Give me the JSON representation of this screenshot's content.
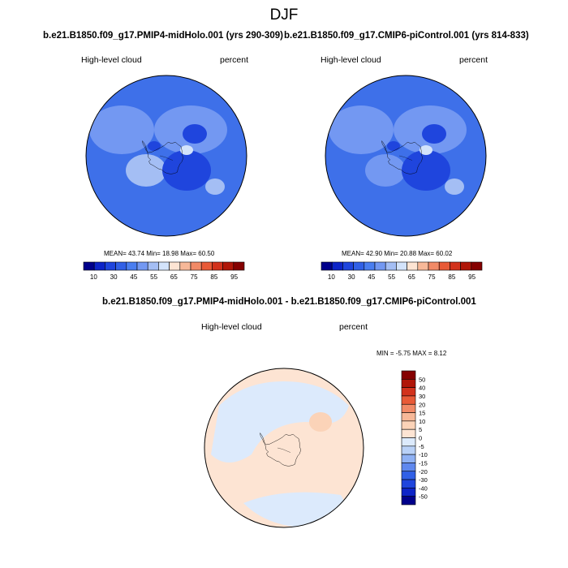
{
  "figure": {
    "title": "DJF"
  },
  "panels": [
    {
      "case": "b.e21.B1850.f09_g17.PMIP4-midHolo.001 (yrs 290-309)",
      "left_label": "High-level cloud",
      "right_label": "percent",
      "stats": "MEAN=  43.74  Min=  18.98  Max=  60.50"
    },
    {
      "case": "b.e21.B1850.f09_g17.CMIP6-piControl.001 (yrs 814-833)",
      "left_label": "High-level cloud",
      "right_label": "percent",
      "stats": "MEAN=  42.90  Min=  20.88  Max=  60.02"
    }
  ],
  "colorbar_top": {
    "labels": [
      "10",
      "30",
      "45",
      "55",
      "65",
      "75",
      "85",
      "95"
    ],
    "colors": [
      "#00008b",
      "#0d24c8",
      "#1f45dd",
      "#3160e6",
      "#4a7ef0",
      "#7398f2",
      "#a4bef4",
      "#d3e3fb",
      "#fde4d3",
      "#f7b898",
      "#f18a67",
      "#e85a37",
      "#d2321c",
      "#b01608",
      "#850000"
    ]
  },
  "difference": {
    "title": "b.e21.B1850.f09_g17.PMIP4-midHolo.001 - b.e21.B1850.f09_g17.CMIP6-piControl.001",
    "left_label": "High-level cloud",
    "right_label": "percent",
    "minmax": "MIN =  -5.75 MAX =   8.12",
    "colorbar_labels": [
      "50",
      "40",
      "30",
      "20",
      "15",
      "10",
      "5",
      "0",
      "-5",
      "-10",
      "-15",
      "-20",
      "-30",
      "-40",
      "-50"
    ],
    "colorbar_colors": [
      "#850000",
      "#b01608",
      "#d2321c",
      "#e85a37",
      "#f18a67",
      "#f7b898",
      "#fbd3b8",
      "#fde4d3",
      "#dceafc",
      "#b9d1f7",
      "#8fb1f4",
      "#5f88ee",
      "#3160e6",
      "#1f45dd",
      "#0d24c8",
      "#00008b"
    ]
  }
}
